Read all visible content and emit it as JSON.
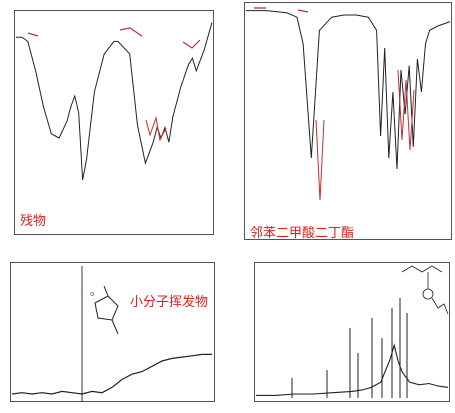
{
  "labels": {
    "residue": "残物",
    "phthalate": "邻苯二甲酸二丁酯",
    "volatile": "小分子挥发物"
  },
  "colors": {
    "annotation": "#e0201c",
    "trace": "#222222",
    "peak_marks": "#c03030"
  },
  "chart_data": [
    {
      "type": "line",
      "panel": "top-left",
      "title": "",
      "xlabel": "",
      "ylabel": "",
      "series_label": "残物",
      "grid": false,
      "x": [
        0,
        3,
        6,
        10,
        14,
        18,
        22,
        26,
        28,
        30,
        32,
        34,
        36,
        40,
        45,
        50,
        52,
        55,
        58,
        62,
        66,
        70,
        72,
        74,
        76,
        78,
        80,
        84,
        88,
        90,
        92,
        96,
        100
      ],
      "y": [
        88,
        88,
        86,
        72,
        55,
        42,
        40,
        48,
        55,
        60,
        52,
        20,
        30,
        62,
        80,
        86,
        86,
        83,
        80,
        46,
        28,
        38,
        45,
        40,
        45,
        38,
        50,
        64,
        75,
        78,
        72,
        82,
        95
      ]
    },
    {
      "type": "line",
      "panel": "top-right",
      "title": "",
      "xlabel": "",
      "ylabel": "",
      "series_label": "邻苯二甲酸二丁酯",
      "grid": false,
      "x": [
        0,
        5,
        10,
        20,
        25,
        28,
        32,
        36,
        42,
        48,
        54,
        60,
        64,
        66,
        68,
        70,
        72,
        74,
        76,
        78,
        80,
        82,
        84,
        86,
        88,
        90,
        94,
        100
      ],
      "y": [
        97,
        97,
        97,
        96,
        94,
        82,
        30,
        88,
        94,
        95,
        95,
        94,
        88,
        40,
        80,
        30,
        60,
        25,
        70,
        50,
        72,
        35,
        75,
        60,
        82,
        88,
        90,
        92
      ]
    },
    {
      "type": "line",
      "panel": "bottom-left",
      "title": "",
      "xlabel": "",
      "ylabel": "",
      "series_label": "小分子挥发物",
      "grid": false,
      "x": [
        0,
        5,
        10,
        15,
        20,
        25,
        30,
        35,
        40,
        45,
        50,
        55,
        60,
        65,
        70,
        75,
        80,
        85,
        90,
        95,
        100
      ],
      "y": [
        3,
        4,
        3,
        4,
        3,
        5,
        4,
        3,
        5,
        4,
        8,
        14,
        18,
        20,
        24,
        28,
        30,
        31,
        32,
        33,
        33
      ]
    },
    {
      "type": "line",
      "panel": "bottom-right",
      "title": "",
      "xlabel": "",
      "ylabel": "",
      "grid": false,
      "x": [
        0,
        10,
        20,
        30,
        40,
        50,
        55,
        60,
        65,
        70,
        72,
        74,
        76,
        78,
        80,
        85,
        90,
        95,
        100
      ],
      "y": [
        2,
        2,
        3,
        3,
        4,
        5,
        6,
        8,
        12,
        30,
        40,
        28,
        20,
        16,
        12,
        10,
        11,
        9,
        8
      ]
    }
  ]
}
